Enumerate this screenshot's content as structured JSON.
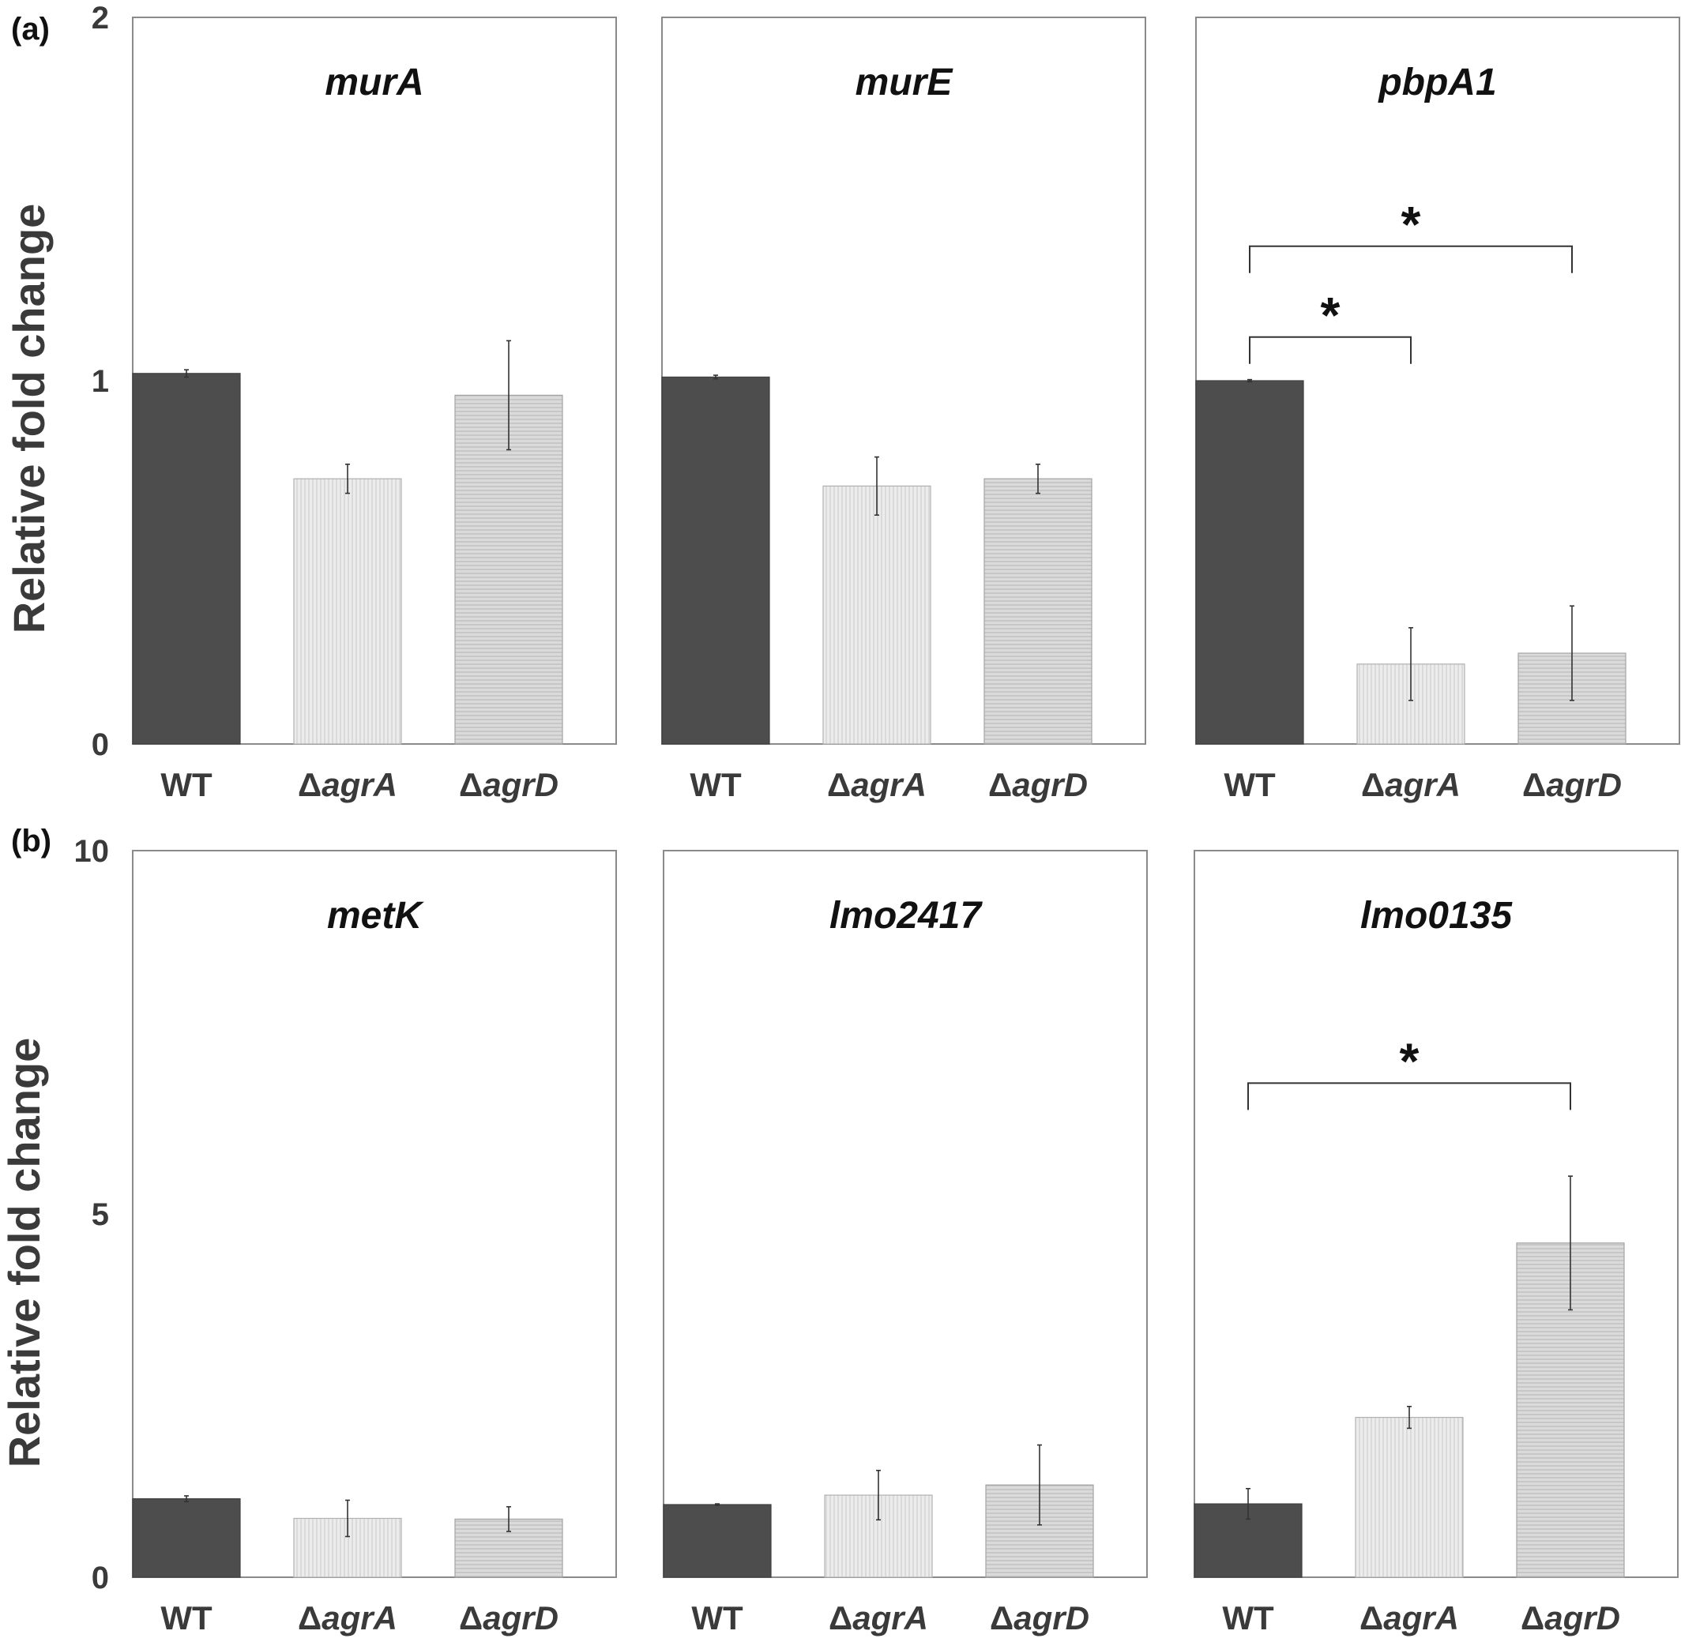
{
  "panels": [
    {
      "id": "a",
      "label": "(a)"
    },
    {
      "id": "b",
      "label": "(b)"
    }
  ],
  "y_axis_title": "Relative fold change",
  "colors": {
    "WT": "#4d4d4d",
    "agrA": "#e4e4e4",
    "agrD": "#cfcfcf",
    "frame": "#8a8a8a",
    "error_bar": "#333333"
  },
  "chart_data": [
    {
      "type": "bar",
      "panel": "a",
      "title": "murA",
      "categories": [
        "WT",
        "ΔagrA",
        "ΔagrD"
      ],
      "values": [
        1.02,
        0.73,
        0.96
      ],
      "errors": [
        0.01,
        0.04,
        0.15
      ],
      "ylim": [
        0,
        2
      ],
      "yticks": [
        "0",
        "1",
        "2"
      ],
      "ylabel": "Relative fold change",
      "significance": []
    },
    {
      "type": "bar",
      "panel": "a",
      "title": "murE",
      "categories": [
        "WT",
        "ΔagrA",
        "ΔagrD"
      ],
      "values": [
        1.01,
        0.71,
        0.73
      ],
      "errors": [
        0.005,
        0.08,
        0.04
      ],
      "ylim": [
        0,
        2
      ],
      "yticks": [],
      "ylabel": "",
      "significance": []
    },
    {
      "type": "bar",
      "panel": "a",
      "title": "pbpA1",
      "categories": [
        "WT",
        "ΔagrA",
        "ΔagrD"
      ],
      "values": [
        1.0,
        0.22,
        0.25
      ],
      "errors": [
        0.003,
        0.1,
        0.13
      ],
      "ylim": [
        0,
        2
      ],
      "yticks": [],
      "ylabel": "",
      "significance": [
        {
          "from": 0,
          "to": 1,
          "label": "*",
          "level": 1.12
        },
        {
          "from": 0,
          "to": 2,
          "label": "*",
          "level": 1.37
        }
      ]
    },
    {
      "type": "bar",
      "panel": "b",
      "title": "metK",
      "categories": [
        "WT",
        "ΔagrA",
        "ΔagrD"
      ],
      "values": [
        1.08,
        0.81,
        0.8
      ],
      "errors": [
        0.04,
        0.25,
        0.17
      ],
      "ylim": [
        0,
        10
      ],
      "yticks": [
        "0",
        "5",
        "10"
      ],
      "ylabel": "Relative fold change",
      "significance": []
    },
    {
      "type": "bar",
      "panel": "b",
      "title": "lmo2417",
      "categories": [
        "WT",
        "ΔagrA",
        "ΔagrD"
      ],
      "values": [
        1.0,
        1.13,
        1.27
      ],
      "errors": [
        0.01,
        0.34,
        0.55
      ],
      "ylim": [
        0,
        10
      ],
      "yticks": [],
      "ylabel": "",
      "significance": []
    },
    {
      "type": "bar",
      "panel": "b",
      "title": "lmo0135",
      "categories": [
        "WT",
        "ΔagrA",
        "ΔagrD"
      ],
      "values": [
        1.01,
        2.2,
        4.6
      ],
      "errors": [
        0.21,
        0.15,
        0.92
      ],
      "ylim": [
        0,
        10
      ],
      "yticks": [],
      "ylabel": "",
      "significance": [
        {
          "from": 0,
          "to": 2,
          "label": "*",
          "level": 6.8
        }
      ]
    }
  ]
}
